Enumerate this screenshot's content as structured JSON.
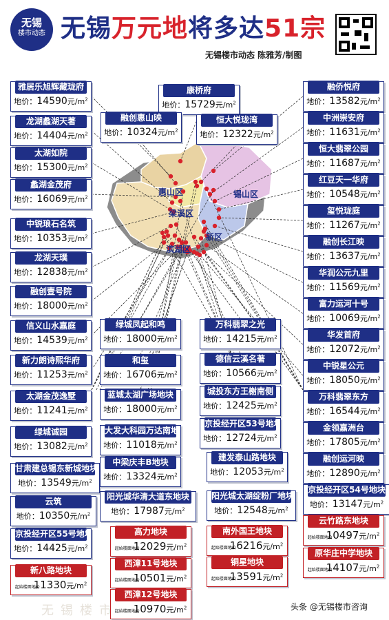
{
  "logo": {
    "line1": "无锡",
    "line2": "楼市动态"
  },
  "title": {
    "part1": "无锡",
    "part2": "万元地",
    "part3": "将多达",
    "part4": "51宗"
  },
  "byline": "无锡楼市动态  陈雅芳/制图",
  "footer": "头条 @无锡楼市咨询",
  "price_label": "地价：",
  "price_unit": "元/㎡",
  "red_price_label": "起始楼面地价",
  "districts": [
    "惠山区",
    "锡山区",
    "梁溪区",
    "新区",
    "滨湖区"
  ],
  "colors": {
    "navy": "#1f2f86",
    "red": "#c22126",
    "huishan": "#e9d3a3",
    "xishan": "#e6c3e4",
    "liangxi": "#f2e9a6",
    "xinqu": "#bcc8ea",
    "binhu": "#f1dfb4"
  },
  "plots": [
    {
      "name": "雅居乐旭辉藏珑府",
      "price": "14590",
      "red": false
    },
    {
      "name": "康桥府",
      "price": "15729",
      "red": false
    },
    {
      "name": "融侨悦府",
      "price": "13582",
      "red": false
    },
    {
      "name": "融创惠山映",
      "price": "10324",
      "red": false
    },
    {
      "name": "龙湖蠡湖天著",
      "price": "14404",
      "red": false
    },
    {
      "name": "恒大悦珑湾",
      "price": "12322",
      "red": false
    },
    {
      "name": "中洲崇安府",
      "price": "11631",
      "red": false
    },
    {
      "name": "太湖如院",
      "price": "15300",
      "red": false
    },
    {
      "name": "恒大翡翠公园",
      "price": "11687",
      "red": false
    },
    {
      "name": "红豆天一华府",
      "price": "10548",
      "red": false
    },
    {
      "name": "蠡湖金茂府",
      "price": "16069",
      "red": false
    },
    {
      "name": "玺悦珑庭",
      "price": "11267",
      "red": false
    },
    {
      "name": "中锐琅石名筑",
      "price": "10353",
      "red": false
    },
    {
      "name": "融创长江映",
      "price": "13637",
      "red": false
    },
    {
      "name": "龙湖天璞",
      "price": "12838",
      "red": false
    },
    {
      "name": "华润公元九里",
      "price": "11569",
      "red": false
    },
    {
      "name": "融创壹号院",
      "price": "18000",
      "red": false
    },
    {
      "name": "富力运河十号",
      "price": "10069",
      "red": false
    },
    {
      "name": "信义山水嘉庭",
      "price": "14539",
      "red": false
    },
    {
      "name": "绿城凤起和鸣",
      "price": "18000",
      "red": false
    },
    {
      "name": "万科翡翠之光",
      "price": "14215",
      "red": false
    },
    {
      "name": "华发首府",
      "price": "12072",
      "red": false
    },
    {
      "name": "新力朗诗熙华府",
      "price": "11253",
      "red": false
    },
    {
      "name": "和玺",
      "price": "16706",
      "red": false
    },
    {
      "name": "德信云溪名著",
      "price": "10566",
      "red": false
    },
    {
      "name": "中锐星公元",
      "price": "18050",
      "red": false
    },
    {
      "name": "太湖金茂逸墅",
      "price": "11241",
      "red": false
    },
    {
      "name": "蓝城太湖广场地块",
      "price": "18000",
      "red": false
    },
    {
      "name": "城投东方王榭南侧",
      "price": "12425",
      "red": false
    },
    {
      "name": "万科翡翠东方",
      "price": "16544",
      "red": false
    },
    {
      "name": "绿城诚园",
      "price": "13082",
      "red": false
    },
    {
      "name": "大发大科园万达南地块",
      "price": "11018",
      "red": false
    },
    {
      "name": "京投经开区53号地块",
      "price": "12724",
      "red": false
    },
    {
      "name": "金领嘉洲台",
      "price": "17805",
      "red": false
    },
    {
      "name": "甘肃建总锡东新城地块",
      "price": "13549",
      "red": false
    },
    {
      "name": "中梁庆丰B地块",
      "price": "13324",
      "red": false
    },
    {
      "name": "建发泰山路地块",
      "price": "12053",
      "red": false
    },
    {
      "name": "融创运河映",
      "price": "12890",
      "red": false
    },
    {
      "name": "云筑",
      "price": "10350",
      "red": false
    },
    {
      "name": "阳光城华清大道东地块",
      "price": "17987",
      "red": false
    },
    {
      "name": "阳光城太湖绽粉厂地块",
      "price": "12548",
      "red": false
    },
    {
      "name": "京投经开区54号地块",
      "price": "13147",
      "red": false
    },
    {
      "name": "京投经开区55号地块",
      "price": "14425",
      "red": false
    },
    {
      "name": "高力地块",
      "price": "12029",
      "red": true
    },
    {
      "name": "南外国王地块",
      "price": "16216",
      "red": true
    },
    {
      "name": "云竹路东地块",
      "price": "10497",
      "red": true
    },
    {
      "name": "新八路地块",
      "price": "11330",
      "red": true
    },
    {
      "name": "西漳11号地块",
      "price": "10501",
      "red": true
    },
    {
      "name": "铜星地块",
      "price": "13591",
      "red": true
    },
    {
      "name": "原华庄中学地块",
      "price": "14107",
      "red": true
    },
    {
      "name": "西漳12号地块",
      "price": "10970",
      "red": true
    }
  ]
}
